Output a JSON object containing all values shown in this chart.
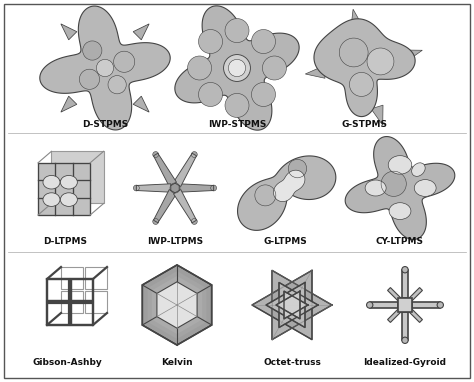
{
  "background_color": "#ffffff",
  "border_color": "#888888",
  "label_fontsize": 6.5,
  "label_fontweight": "bold",
  "shape_facecolor": "#c0c0c0",
  "shape_edgecolor": "#444444",
  "shape_linewidth": 0.8,
  "row0_labels": [
    "D-STPMS",
    "IWP-STPMS",
    "G-STPMS"
  ],
  "row1_labels": [
    "D-LTPMS",
    "IWP-LTPMS",
    "G-LTPMS",
    "CY-LTPMS"
  ],
  "row2_labels": [
    "Gibson-Ashby",
    "Kelvin",
    "Octet-truss",
    "Idealized-Gyroid"
  ],
  "divider_color": "#aaaaaa",
  "divider_lw": 0.5,
  "highlight_color": "#e8e8e8",
  "shadow_color": "#909090",
  "mid_color": "#b0b0b0"
}
